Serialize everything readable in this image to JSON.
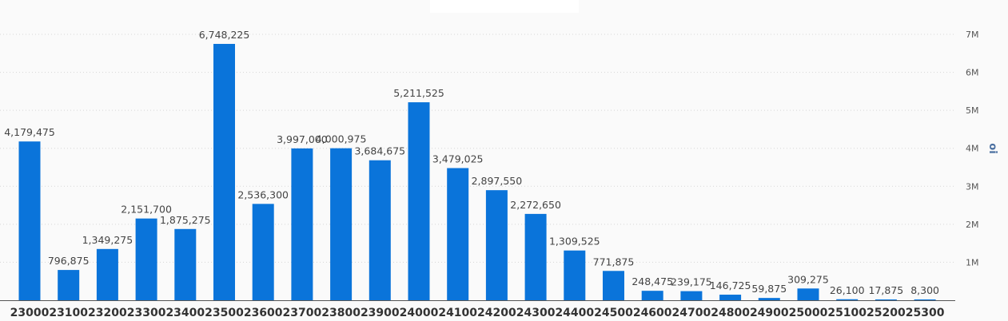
{
  "chart_data": {
    "type": "bar",
    "title": "",
    "xlabel": "",
    "ylabel": "oi",
    "ylim": [
      0,
      7000000
    ],
    "yticks": [
      1000000,
      2000000,
      3000000,
      4000000,
      5000000,
      6000000,
      7000000
    ],
    "ytick_labels": [
      "1M",
      "2M",
      "3M",
      "4M",
      "5M",
      "6M",
      "7M"
    ],
    "grid": true,
    "y_axis_side": "right",
    "bar_color": "#0a74da",
    "categories": [
      "23000",
      "23100",
      "23200",
      "23300",
      "23400",
      "23500",
      "23600",
      "23700",
      "23800",
      "23900",
      "24000",
      "24100",
      "24200",
      "24300",
      "24400",
      "24500",
      "24600",
      "24700",
      "24800",
      "24900",
      "25000",
      "25100",
      "25200",
      "25300"
    ],
    "values": [
      4179475,
      796875,
      1349275,
      2151700,
      1875275,
      6748225,
      2536300,
      3997000,
      4000975,
      3684675,
      5211525,
      3479025,
      2897550,
      2272650,
      1309525,
      771875,
      248475,
      239175,
      146725,
      59875,
      309275,
      26100,
      17875,
      8300
    ],
    "value_labels": [
      "4,179,475",
      "796,875",
      "1,349,275",
      "2,151,700",
      "1,875,275",
      "6,748,225",
      "2,536,300",
      "3,997,000",
      "4,000,975",
      "3,684,675",
      "5,211,525",
      "3,479,025",
      "2,897,550",
      "2,272,650",
      "1,309,525",
      "771,875",
      "248,475",
      "239,175",
      "146,725",
      "59,875",
      "309,275",
      "26,100",
      "17,875",
      "8,300"
    ]
  }
}
